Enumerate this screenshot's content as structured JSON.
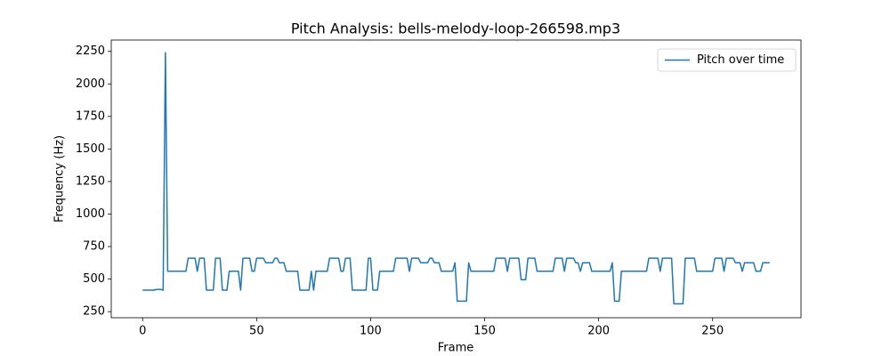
{
  "chart_data": {
    "type": "line",
    "title": "Pitch Analysis: bells-melody-loop-266598.mp3",
    "xlabel": "Frame",
    "ylabel": "Frequency (Hz)",
    "x": [
      0,
      1,
      2,
      3,
      4,
      5,
      6,
      7,
      8,
      9,
      10,
      11,
      12,
      13,
      14,
      15,
      16,
      17,
      18,
      19,
      20,
      21,
      22,
      23,
      24,
      25,
      26,
      27,
      28,
      29,
      30,
      31,
      32,
      33,
      34,
      35,
      36,
      37,
      38,
      39,
      40,
      41,
      42,
      43,
      44,
      45,
      46,
      47,
      48,
      49,
      50,
      51,
      52,
      53,
      54,
      55,
      56,
      57,
      58,
      59,
      60,
      61,
      62,
      63,
      64,
      65,
      66,
      67,
      68,
      69,
      70,
      71,
      72,
      73,
      74,
      75,
      76,
      77,
      78,
      79,
      80,
      81,
      82,
      83,
      84,
      85,
      86,
      87,
      88,
      89,
      90,
      91,
      92,
      93,
      94,
      95,
      96,
      97,
      98,
      99,
      100,
      101,
      102,
      103,
      104,
      105,
      106,
      107,
      108,
      109,
      110,
      111,
      112,
      113,
      114,
      115,
      116,
      117,
      118,
      119,
      120,
      121,
      122,
      123,
      124,
      125,
      126,
      127,
      128,
      129,
      130,
      131,
      132,
      133,
      134,
      135,
      136,
      137,
      138,
      139,
      140,
      141,
      142,
      143,
      144,
      145,
      146,
      147,
      148,
      149,
      150,
      151,
      152,
      153,
      154,
      155,
      156,
      157,
      158,
      159,
      160,
      161,
      162,
      163,
      164,
      165,
      166,
      167,
      168,
      169,
      170,
      171,
      172,
      173,
      174,
      175,
      176,
      177,
      178,
      179,
      180,
      181,
      182,
      183,
      184,
      185,
      186,
      187,
      188,
      189,
      190,
      191,
      192,
      193,
      194,
      195,
      196,
      197,
      198,
      199,
      200,
      201,
      202,
      203,
      204,
      205,
      206,
      207,
      208,
      209,
      210,
      211,
      212,
      213,
      214,
      215,
      216,
      217,
      218,
      219,
      220,
      221,
      222,
      223,
      224,
      225,
      226,
      227,
      228,
      229,
      230,
      231,
      232,
      233,
      234,
      235,
      236,
      237,
      238,
      239,
      240,
      241,
      242,
      243,
      244,
      245,
      246,
      247,
      248,
      249,
      250,
      251,
      252,
      253,
      254,
      255,
      256,
      257,
      258,
      259,
      260,
      261,
      262,
      263,
      264,
      265,
      266,
      267,
      268,
      269,
      270,
      271,
      272,
      273,
      274,
      275
    ],
    "series": [
      {
        "name": "Pitch over time",
        "color": "#1f77b4",
        "values": [
          415,
          415,
          415,
          415,
          415,
          415,
          420,
          420,
          420,
          415,
          2240,
          560,
          560,
          560,
          560,
          560,
          560,
          560,
          560,
          560,
          660,
          660,
          660,
          660,
          560,
          660,
          660,
          660,
          415,
          415,
          415,
          415,
          660,
          660,
          660,
          415,
          415,
          415,
          560,
          560,
          560,
          560,
          560,
          415,
          660,
          660,
          660,
          660,
          560,
          560,
          660,
          660,
          660,
          660,
          625,
          625,
          625,
          625,
          660,
          660,
          625,
          625,
          625,
          560,
          560,
          560,
          560,
          560,
          560,
          415,
          415,
          415,
          415,
          415,
          560,
          415,
          560,
          560,
          560,
          560,
          560,
          560,
          660,
          660,
          660,
          660,
          660,
          560,
          560,
          660,
          660,
          660,
          415,
          415,
          415,
          415,
          415,
          415,
          415,
          660,
          660,
          415,
          415,
          415,
          560,
          560,
          560,
          560,
          560,
          560,
          560,
          660,
          660,
          660,
          660,
          660,
          660,
          560,
          660,
          660,
          660,
          660,
          625,
          625,
          625,
          625,
          660,
          660,
          625,
          625,
          625,
          560,
          560,
          560,
          560,
          560,
          560,
          625,
          330,
          330,
          330,
          330,
          330,
          625,
          560,
          560,
          560,
          560,
          560,
          560,
          560,
          560,
          560,
          560,
          560,
          660,
          660,
          660,
          660,
          660,
          560,
          660,
          660,
          660,
          660,
          660,
          495,
          495,
          495,
          660,
          660,
          660,
          660,
          560,
          560,
          560,
          560,
          560,
          560,
          560,
          560,
          660,
          660,
          660,
          660,
          560,
          660,
          660,
          660,
          660,
          625,
          625,
          560,
          625,
          625,
          625,
          625,
          560,
          560,
          560,
          560,
          560,
          560,
          560,
          560,
          560,
          625,
          330,
          330,
          330,
          560,
          560,
          560,
          560,
          560,
          560,
          560,
          560,
          560,
          560,
          560,
          560,
          660,
          660,
          660,
          660,
          660,
          560,
          660,
          660,
          660,
          660,
          660,
          310,
          310,
          310,
          310,
          310,
          660,
          660,
          660,
          660,
          660,
          560,
          560,
          560,
          560,
          560,
          560,
          560,
          560,
          660,
          660,
          660,
          660,
          560,
          660,
          660,
          660,
          660,
          625,
          625,
          625,
          560,
          625,
          625,
          625,
          625,
          625,
          560,
          560,
          560,
          625,
          625,
          625,
          625
        ]
      }
    ],
    "xlim": [
      -13.75,
      288.75
    ],
    "ylim": [
      203,
      2337
    ],
    "xticks": [
      0,
      50,
      100,
      150,
      200,
      250
    ],
    "yticks": [
      250,
      500,
      750,
      1000,
      1250,
      1500,
      1750,
      2000,
      2250
    ],
    "legend": "upper right"
  }
}
